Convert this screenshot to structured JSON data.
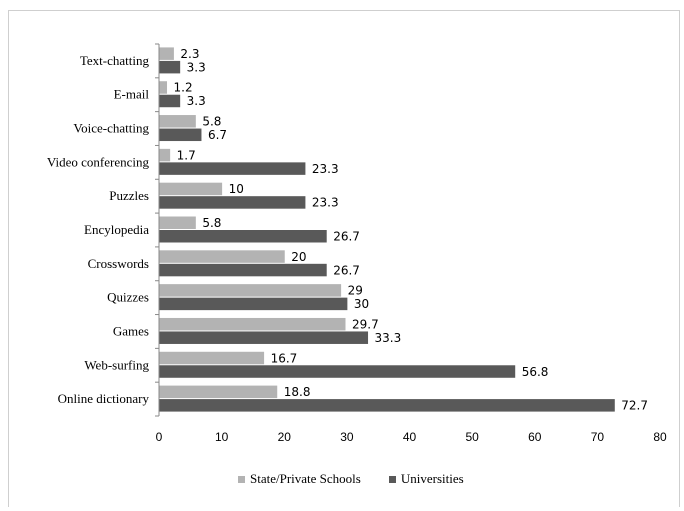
{
  "colors": {
    "state": "#b3b3b3",
    "universities": "#595959",
    "axis": "#888888"
  },
  "legend": {
    "items": [
      {
        "label": "State/Private Schools",
        "color": "#b3b3b3"
      },
      {
        "label": "Universities",
        "color": "#595959"
      }
    ],
    "placement": "bottom"
  },
  "chart_data": {
    "type": "bar",
    "orientation": "horizontal",
    "title": "",
    "xlabel": "",
    "ylabel": "",
    "xlim": [
      0,
      80
    ],
    "xticks": [
      0,
      10,
      20,
      30,
      40,
      50,
      60,
      70,
      80
    ],
    "grid": false,
    "categories": [
      "Text-chatting",
      "E-mail",
      "Voice-chatting",
      "Video conferencing",
      "Puzzles",
      "Encylopedia",
      "Crosswords",
      "Quizzes",
      "Games",
      "Web-surfing",
      "Online dictionary"
    ],
    "series": [
      {
        "name": "State/Private Schools",
        "values": [
          2.3,
          1.2,
          5.8,
          1.7,
          10,
          5.8,
          20,
          29,
          29.7,
          16.7,
          18.8
        ],
        "labels": [
          "2.3",
          "1.2",
          "5.8",
          "1.7",
          "10",
          "5.8",
          "20",
          "29",
          "29.7",
          "16.7",
          "18.8"
        ]
      },
      {
        "name": "Universities",
        "values": [
          3.3,
          3.3,
          6.7,
          23.3,
          23.3,
          26.7,
          26.7,
          30,
          33.3,
          56.8,
          72.7
        ],
        "labels": [
          "3.3",
          "3.3",
          "6.7",
          "23.3",
          "23.3",
          "26.7",
          "26.7",
          "30",
          "33.3",
          "56.8",
          "72.7"
        ]
      }
    ]
  }
}
